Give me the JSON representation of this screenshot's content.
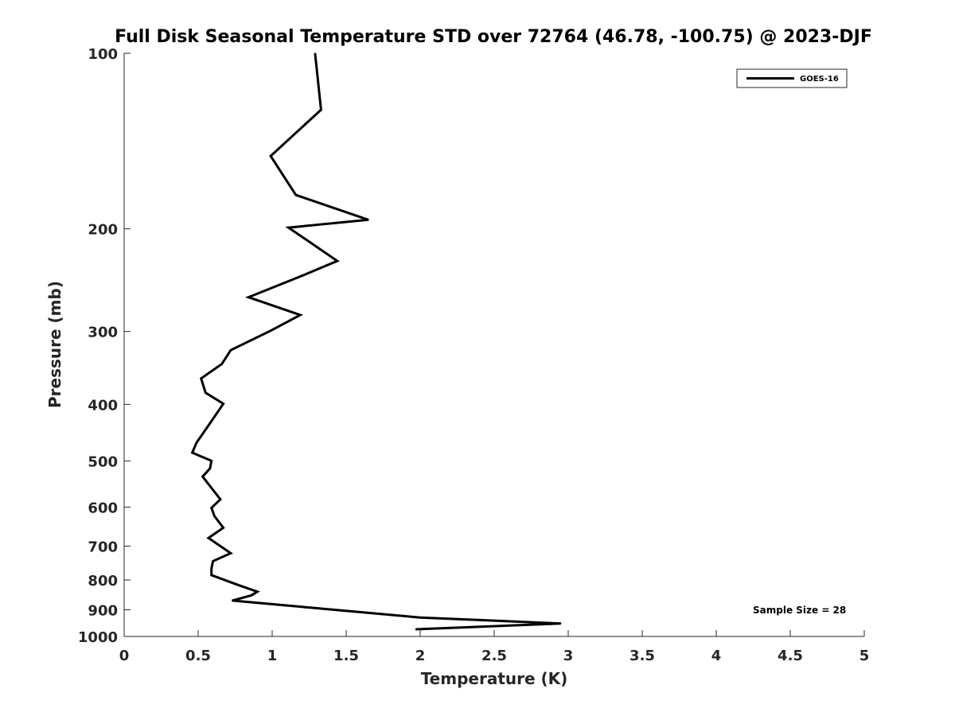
{
  "chart_data": {
    "type": "line",
    "title": "Full Disk Seasonal Temperature STD over 72764 (46.78, -100.75) @ 2023-DJF",
    "xlabel": "Temperature (K)",
    "ylabel": "Pressure (mb)",
    "xlim": [
      0,
      5
    ],
    "ylim": [
      1000,
      100
    ],
    "yscale": "log",
    "y_reversed": true,
    "grid": false,
    "legend_position": "top-right",
    "x_ticks": [
      "0",
      "0.5",
      "1",
      "1.5",
      "2",
      "2.5",
      "3",
      "3.5",
      "4",
      "4.5",
      "5"
    ],
    "y_ticks": [
      "100",
      "200",
      "300",
      "400",
      "500",
      "600",
      "700",
      "800",
      "900",
      "1000"
    ],
    "annotation": "Sample Size = 28",
    "series": [
      {
        "name": "GOES-16",
        "color": "#000000",
        "points": [
          [
            1.29,
            100
          ],
          [
            1.33,
            125
          ],
          [
            0.99,
            150
          ],
          [
            1.16,
            175
          ],
          [
            1.65,
            193
          ],
          [
            1.11,
            199
          ],
          [
            1.44,
            227
          ],
          [
            1.18,
            242
          ],
          [
            0.84,
            262
          ],
          [
            1.19,
            281
          ],
          [
            0.99,
            299
          ],
          [
            0.72,
            323
          ],
          [
            0.66,
            341
          ],
          [
            0.52,
            361
          ],
          [
            0.55,
            382
          ],
          [
            0.67,
            399
          ],
          [
            0.61,
            420
          ],
          [
            0.55,
            442
          ],
          [
            0.49,
            465
          ],
          [
            0.46,
            484
          ],
          [
            0.59,
            500
          ],
          [
            0.58,
            515
          ],
          [
            0.53,
            532
          ],
          [
            0.65,
            582
          ],
          [
            0.59,
            602
          ],
          [
            0.61,
            622
          ],
          [
            0.67,
            651
          ],
          [
            0.57,
            678
          ],
          [
            0.72,
            720
          ],
          [
            0.6,
            743
          ],
          [
            0.59,
            765
          ],
          [
            0.59,
            785
          ],
          [
            0.77,
            816
          ],
          [
            0.9,
            838
          ],
          [
            0.86,
            850
          ],
          [
            0.73,
            868
          ],
          [
            2.0,
            928
          ],
          [
            2.95,
            950
          ],
          [
            1.97,
            972
          ]
        ]
      }
    ]
  }
}
